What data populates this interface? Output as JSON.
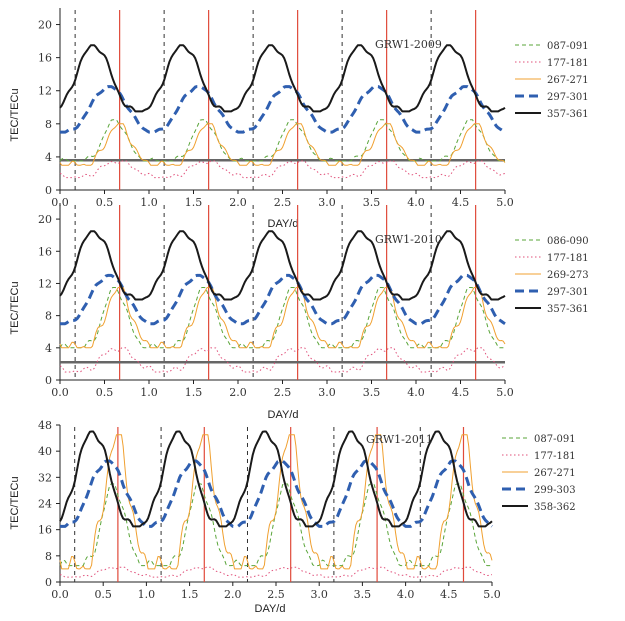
{
  "figure": {
    "x_axis_label": "DAY/d",
    "y_axis_label": "TEC/TECu"
  },
  "style": {
    "colors": {
      "dash_series": "#5aa53a",
      "dot_series": "#e0507a",
      "thin_series": "#f0a030",
      "blue_series": "#2f5fb0",
      "black_series": "#1a1a1a",
      "red_marker": "#e04a3a",
      "dark_marker": "#333333"
    }
  },
  "chart_data": [
    {
      "type": "line",
      "title": "GRW1-2009",
      "xlabel": "DAY/d",
      "ylabel": "TEC/TECu",
      "xlim": [
        0.0,
        5.0
      ],
      "ylim": [
        0,
        22
      ],
      "x_ticks": [
        "0.0",
        "0.5",
        "1.0",
        "1.5",
        "2.0",
        "2.5",
        "3.0",
        "3.5",
        "4.0",
        "4.5",
        "5.0"
      ],
      "y_ticks": [
        "0",
        "4",
        "8",
        "12",
        "16",
        "20"
      ],
      "x_tick_values": [
        0,
        0.5,
        1,
        1.5,
        2,
        2.5,
        3,
        3.5,
        4,
        4.5,
        5
      ],
      "y_tick_values": [
        0,
        4,
        8,
        12,
        16,
        20
      ],
      "vertical_markers_red": [
        0.67,
        1.67,
        2.67,
        3.67,
        4.67
      ],
      "vertical_markers_dashed": [
        0.17,
        1.17,
        2.17,
        3.17,
        4.17
      ],
      "series": [
        {
          "name": "087-091",
          "style": "dashed-green",
          "profile": {
            "min": 3.5,
            "max": 8.5
          }
        },
        {
          "name": "177-181",
          "style": "dotted-pink",
          "profile": {
            "min": 1.5,
            "max": 3.5
          }
        },
        {
          "name": "267-271",
          "style": "thin-orange",
          "profile": {
            "min": 3.0,
            "max": 8.0
          }
        },
        {
          "name": "297-301",
          "style": "thick-dashed-blue",
          "profile": {
            "min": 7.0,
            "max": 12.5
          }
        },
        {
          "name": "357-361",
          "style": "thick-black",
          "profile": {
            "min": 9.5,
            "max": 17.5
          }
        }
      ],
      "baseline": {
        "name": "baseline",
        "value": 3.6
      }
    },
    {
      "type": "line",
      "title": "GRW1-2010",
      "xlabel": "DAY/d",
      "ylabel": "TEC/TECu",
      "xlim": [
        0.0,
        5.0
      ],
      "ylim": [
        0,
        22
      ],
      "x_ticks": [
        "0.0",
        "0.5",
        "1.0",
        "1.5",
        "2.0",
        "2.5",
        "3.0",
        "3.5",
        "4.0",
        "4.5",
        "5.0"
      ],
      "y_ticks": [
        "0",
        "4",
        "8",
        "12",
        "16",
        "20"
      ],
      "x_tick_values": [
        0,
        0.5,
        1,
        1.5,
        2,
        2.5,
        3,
        3.5,
        4,
        4.5,
        5
      ],
      "y_tick_values": [
        0,
        4,
        8,
        12,
        16,
        20
      ],
      "vertical_markers_red": [
        0.67,
        1.67,
        2.67,
        3.67,
        4.67
      ],
      "vertical_markers_dashed": [
        0.17,
        1.17,
        2.17,
        3.17,
        4.17
      ],
      "series": [
        {
          "name": "086-090",
          "style": "dashed-green",
          "profile": {
            "min": 4.0,
            "max": 11.5
          }
        },
        {
          "name": "177-181",
          "style": "dotted-pink",
          "profile": {
            "min": 1.0,
            "max": 4.0
          }
        },
        {
          "name": "269-273",
          "style": "thin-orange",
          "profile": {
            "min": 4.0,
            "max": 11.5
          }
        },
        {
          "name": "297-301",
          "style": "thick-dashed-blue",
          "profile": {
            "min": 7.0,
            "max": 13.0
          }
        },
        {
          "name": "357-361",
          "style": "thick-black",
          "profile": {
            "min": 10.0,
            "max": 18.5
          }
        }
      ],
      "baseline": {
        "name": "baseline",
        "value": 2.2
      }
    },
    {
      "type": "line",
      "title": "GRW1-2011",
      "xlabel": "DAY/d",
      "ylabel": "TEC/TECu",
      "xlim": [
        0.0,
        5.0
      ],
      "ylim": [
        0,
        48
      ],
      "x_ticks": [
        "0.0",
        "0.5",
        "1.0",
        "1.5",
        "2.0",
        "2.5",
        "3.0",
        "3.5",
        "4.0",
        "4.5",
        "5.0"
      ],
      "y_ticks": [
        "0",
        "8",
        "16",
        "24",
        "32",
        "40",
        "48"
      ],
      "x_tick_values": [
        0,
        0.5,
        1,
        1.5,
        2,
        2.5,
        3,
        3.5,
        4,
        4.5,
        5
      ],
      "y_tick_values": [
        0,
        8,
        16,
        24,
        32,
        40,
        48
      ],
      "vertical_markers_red": [
        0.67,
        1.67,
        2.67,
        3.67,
        4.67
      ],
      "vertical_markers_dashed": [
        0.17,
        1.17,
        2.17,
        3.17,
        4.17
      ],
      "series": [
        {
          "name": "087-091",
          "style": "dashed-green",
          "profile": {
            "min": 5.0,
            "max": 30.0
          }
        },
        {
          "name": "177-181",
          "style": "dotted-pink",
          "profile": {
            "min": 1.5,
            "max": 4.5
          }
        },
        {
          "name": "267-271",
          "style": "thin-orange",
          "profile": {
            "min": 4.0,
            "max": 45.0
          }
        },
        {
          "name": "299-303",
          "style": "thick-dashed-blue",
          "profile": {
            "min": 17.0,
            "max": 37.0
          }
        },
        {
          "name": "358-362",
          "style": "thick-black",
          "profile": {
            "min": 17.0,
            "max": 46.0
          }
        }
      ],
      "baseline": null
    }
  ]
}
